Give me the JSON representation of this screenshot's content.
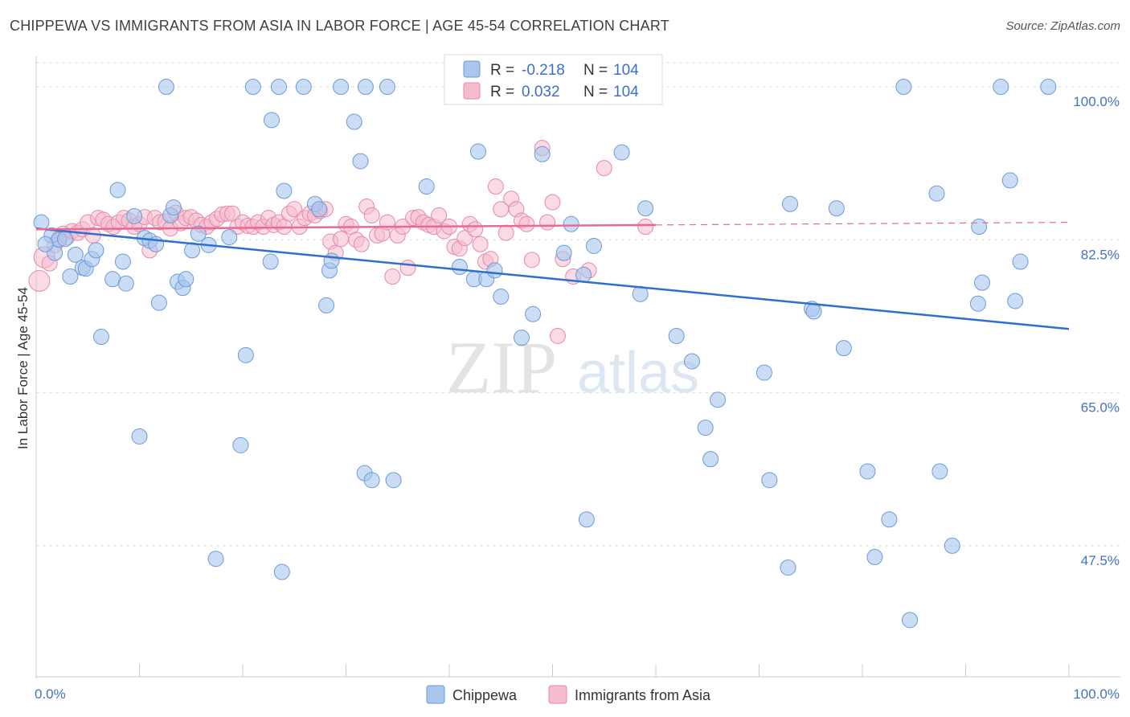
{
  "title": "CHIPPEWA VS IMMIGRANTS FROM ASIA IN LABOR FORCE | AGE 45-54 CORRELATION CHART",
  "source": "Source: ZipAtlas.com",
  "watermark": {
    "zip": "ZIP",
    "atlas": "atlas"
  },
  "colors": {
    "blue_fill": "#a9c6ee",
    "blue_stroke": "#6b9bd8",
    "blue_line": "#2f6fcf",
    "pink_fill": "#f6bccd",
    "pink_stroke": "#e68aa6",
    "pink_line": "#e86a93",
    "grid": "#dddddd",
    "axis_text": "#4472c4"
  },
  "legend": {
    "r_label": "R =",
    "n_label": "N =",
    "series": [
      {
        "r": "-0.218",
        "n": "104"
      },
      {
        "r": "0.032",
        "n": "104"
      }
    ]
  },
  "chart_data": {
    "type": "scatter",
    "title": "CHIPPEWA VS IMMIGRANTS FROM ASIA IN LABOR FORCE | AGE 45-54 CORRELATION CHART",
    "xlabel": "",
    "ylabel": "In Labor Force | Age 45-54",
    "xlim": [
      0,
      100
    ],
    "ylim": [
      32.5,
      103.5
    ],
    "x_tick_labels": [
      "0.0%",
      "100.0%"
    ],
    "y_ticks": [
      47.5,
      65.0,
      82.5,
      100.0
    ],
    "y_tick_labels": [
      "47.5%",
      "65.0%",
      "82.5%",
      "100.0%"
    ],
    "grid": true,
    "legend_placement": "top-center",
    "series": [
      {
        "name": "Chippewa",
        "r": -0.218,
        "n": 104,
        "trend": {
          "x": [
            0,
            100
          ],
          "y": [
            83.8,
            72.3
          ]
        },
        "points": [
          [
            0.5,
            84.5
          ],
          [
            1.5,
            83.0
          ],
          [
            1.8,
            81.0
          ],
          [
            2.2,
            82.5
          ],
          [
            2.8,
            82.6
          ],
          [
            3.3,
            78.3
          ],
          [
            3.8,
            80.8
          ],
          [
            4.5,
            79.3
          ],
          [
            4.8,
            79.2
          ],
          [
            5.4,
            80.3
          ],
          [
            5.8,
            81.3
          ],
          [
            6.3,
            71.4
          ],
          [
            7.4,
            78.0
          ],
          [
            7.9,
            88.2
          ],
          [
            8.4,
            80.0
          ],
          [
            8.7,
            77.5
          ],
          [
            9.5,
            85.2
          ],
          [
            10.0,
            60.0
          ],
          [
            10.5,
            82.7
          ],
          [
            11.0,
            82.4
          ],
          [
            11.6,
            82.0
          ],
          [
            11.9,
            75.3
          ],
          [
            12.6,
            100.0
          ],
          [
            13.0,
            85.3
          ],
          [
            13.3,
            86.2
          ],
          [
            13.7,
            77.7
          ],
          [
            14.2,
            77.0
          ],
          [
            14.5,
            78.0
          ],
          [
            15.1,
            81.3
          ],
          [
            15.7,
            83.2
          ],
          [
            16.7,
            81.9
          ],
          [
            17.4,
            46.0
          ],
          [
            18.7,
            82.8
          ],
          [
            19.8,
            59.0
          ],
          [
            20.3,
            69.3
          ],
          [
            21.0,
            100.0
          ],
          [
            22.7,
            80.0
          ],
          [
            22.8,
            96.2
          ],
          [
            23.5,
            100.0
          ],
          [
            23.8,
            44.5
          ],
          [
            24.0,
            88.1
          ],
          [
            25.9,
            100.0
          ],
          [
            27.0,
            86.6
          ],
          [
            27.4,
            86.0
          ],
          [
            28.1,
            75.0
          ],
          [
            28.4,
            79.0
          ],
          [
            28.6,
            80.1
          ],
          [
            29.5,
            100.0
          ],
          [
            30.8,
            96.0
          ],
          [
            31.4,
            91.5
          ],
          [
            31.9,
            100.0
          ],
          [
            31.8,
            55.8
          ],
          [
            32.5,
            55.0
          ],
          [
            34.0,
            100.0
          ],
          [
            34.6,
            55.0
          ],
          [
            37.8,
            88.6
          ],
          [
            41.0,
            79.4
          ],
          [
            42.4,
            78.0
          ],
          [
            42.8,
            92.6
          ],
          [
            43.6,
            78.0
          ],
          [
            44.4,
            79.0
          ],
          [
            45.0,
            76.0
          ],
          [
            46.0,
            100.0
          ],
          [
            47.0,
            71.3
          ],
          [
            48.1,
            74.0
          ],
          [
            49.0,
            92.3
          ],
          [
            51.1,
            81.0
          ],
          [
            51.8,
            84.3
          ],
          [
            53.0,
            78.5
          ],
          [
            53.3,
            50.5
          ],
          [
            54.0,
            81.8
          ],
          [
            56.7,
            92.5
          ],
          [
            58.5,
            76.3
          ],
          [
            59.0,
            86.1
          ],
          [
            62.0,
            71.5
          ],
          [
            63.5,
            68.6
          ],
          [
            64.8,
            61.0
          ],
          [
            65.3,
            57.4
          ],
          [
            66.0,
            64.2
          ],
          [
            70.5,
            67.3
          ],
          [
            71.0,
            55.0
          ],
          [
            72.8,
            45.0
          ],
          [
            73.0,
            86.6
          ],
          [
            75.1,
            74.6
          ],
          [
            75.3,
            74.3
          ],
          [
            77.5,
            86.1
          ],
          [
            78.2,
            70.1
          ],
          [
            80.5,
            56.0
          ],
          [
            81.2,
            46.2
          ],
          [
            82.6,
            50.5
          ],
          [
            84.0,
            100.0
          ],
          [
            84.6,
            39.0
          ],
          [
            87.2,
            87.8
          ],
          [
            87.5,
            56.0
          ],
          [
            88.7,
            47.5
          ],
          [
            91.2,
            75.2
          ],
          [
            91.3,
            84.0
          ],
          [
            91.6,
            77.6
          ],
          [
            93.4,
            100.0
          ],
          [
            94.3,
            89.3
          ],
          [
            94.8,
            75.5
          ],
          [
            95.3,
            80.0
          ],
          [
            98.0,
            100.0
          ],
          [
            0.9,
            82.0
          ]
        ]
      },
      {
        "name": "Immigrants from Asia",
        "r": 0.032,
        "n": 104,
        "trend": {
          "x": [
            0,
            60
          ],
          "y": [
            83.7,
            84.2
          ]
        },
        "trend_dashed": {
          "x": [
            60,
            100
          ],
          "y": [
            84.2,
            84.5
          ]
        },
        "points": [
          [
            0.3,
            77.8
          ],
          [
            0.8,
            80.5
          ],
          [
            1.3,
            79.8
          ],
          [
            1.8,
            81.9
          ],
          [
            2.2,
            82.6
          ],
          [
            2.6,
            83.2
          ],
          [
            3.0,
            82.8
          ],
          [
            3.5,
            83.5
          ],
          [
            4.0,
            83.3
          ],
          [
            4.5,
            83.7
          ],
          [
            5.0,
            84.5
          ],
          [
            5.5,
            83.0
          ],
          [
            6.0,
            85.0
          ],
          [
            6.5,
            84.8
          ],
          [
            7.0,
            84.3
          ],
          [
            7.5,
            84.0
          ],
          [
            8.0,
            84.5
          ],
          [
            8.5,
            85.0
          ],
          [
            9.0,
            84.7
          ],
          [
            9.5,
            84.0
          ],
          [
            10.0,
            84.3
          ],
          [
            10.5,
            85.1
          ],
          [
            11.0,
            81.3
          ],
          [
            11.5,
            85.0
          ],
          [
            12.0,
            84.5
          ],
          [
            12.5,
            84.6
          ],
          [
            13.0,
            83.8
          ],
          [
            13.5,
            85.6
          ],
          [
            14.0,
            84.4
          ],
          [
            14.5,
            85.0
          ],
          [
            15.0,
            85.1
          ],
          [
            15.5,
            84.7
          ],
          [
            16.0,
            84.2
          ],
          [
            16.5,
            84.0
          ],
          [
            17.0,
            84.5
          ],
          [
            17.5,
            84.9
          ],
          [
            18.0,
            85.4
          ],
          [
            18.5,
            85.5
          ],
          [
            19.0,
            85.5
          ],
          [
            19.5,
            84.0
          ],
          [
            20.0,
            84.5
          ],
          [
            20.5,
            84.1
          ],
          [
            21.0,
            84.0
          ],
          [
            21.5,
            84.5
          ],
          [
            22.0,
            84.0
          ],
          [
            22.5,
            85.0
          ],
          [
            23.0,
            84.2
          ],
          [
            23.5,
            84.5
          ],
          [
            24.0,
            84.0
          ],
          [
            24.5,
            85.5
          ],
          [
            25.0,
            86.0
          ],
          [
            25.5,
            84.0
          ],
          [
            26.0,
            85.0
          ],
          [
            26.5,
            85.5
          ],
          [
            27.0,
            85.3
          ],
          [
            27.5,
            85.8
          ],
          [
            28.0,
            86.0
          ],
          [
            28.5,
            82.3
          ],
          [
            29.0,
            81.0
          ],
          [
            29.5,
            82.6
          ],
          [
            30.0,
            84.3
          ],
          [
            30.5,
            84.0
          ],
          [
            31.0,
            82.5
          ],
          [
            31.5,
            82.0
          ],
          [
            32.0,
            86.3
          ],
          [
            32.5,
            85.3
          ],
          [
            33.0,
            83.0
          ],
          [
            33.5,
            83.2
          ],
          [
            34.0,
            84.5
          ],
          [
            34.5,
            78.3
          ],
          [
            35.0,
            83.0
          ],
          [
            35.5,
            84.0
          ],
          [
            36.0,
            79.3
          ],
          [
            36.5,
            85.0
          ],
          [
            37.0,
            85.1
          ],
          [
            37.5,
            84.5
          ],
          [
            38.0,
            84.2
          ],
          [
            38.5,
            84.0
          ],
          [
            39.0,
            85.3
          ],
          [
            39.5,
            83.5
          ],
          [
            40.0,
            84.0
          ],
          [
            40.5,
            81.7
          ],
          [
            41.0,
            81.5
          ],
          [
            41.5,
            82.7
          ],
          [
            42.0,
            84.3
          ],
          [
            42.5,
            83.7
          ],
          [
            43.0,
            82.0
          ],
          [
            43.5,
            80.0
          ],
          [
            44.0,
            80.3
          ],
          [
            44.5,
            88.6
          ],
          [
            45.0,
            86.0
          ],
          [
            45.5,
            83.3
          ],
          [
            46.0,
            87.2
          ],
          [
            46.5,
            86.0
          ],
          [
            47.0,
            84.7
          ],
          [
            47.5,
            84.3
          ],
          [
            48.0,
            80.2
          ],
          [
            49.0,
            93.0
          ],
          [
            49.5,
            84.5
          ],
          [
            50.0,
            86.8
          ],
          [
            50.5,
            71.5
          ],
          [
            51.0,
            80.3
          ],
          [
            52.0,
            78.3
          ],
          [
            53.5,
            79.0
          ],
          [
            55.0,
            90.7
          ],
          [
            59.0,
            84.0
          ]
        ]
      }
    ]
  },
  "bottom_legend": [
    "Chippewa",
    "Immigrants from Asia"
  ]
}
